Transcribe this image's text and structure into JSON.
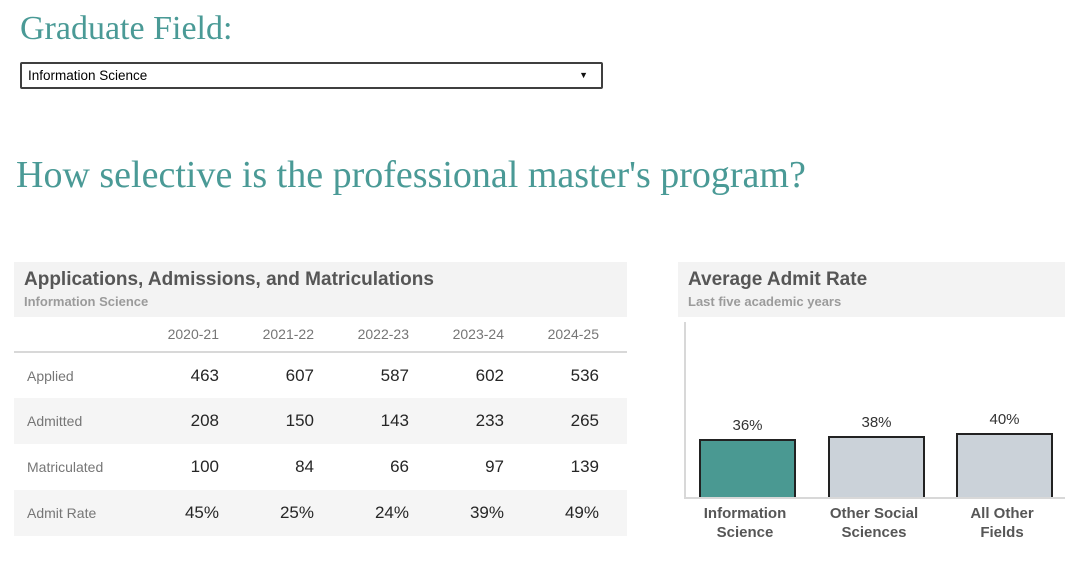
{
  "accent_color": "#4a9a96",
  "filter": {
    "label": "Graduate Field:",
    "selected_value": "Information Science"
  },
  "page_heading": "How selective is the professional master's program?",
  "table": {
    "title": "Applications, Admissions, and Matriculations",
    "subtitle": "Information Science",
    "columns": [
      "2020-21",
      "2021-22",
      "2022-23",
      "2023-24",
      "2024-25"
    ],
    "rows": [
      {
        "label": "Applied",
        "values": [
          "463",
          "607",
          "587",
          "602",
          "536"
        ]
      },
      {
        "label": "Admitted",
        "values": [
          "208",
          "150",
          "143",
          "233",
          "265"
        ]
      },
      {
        "label": "Matriculated",
        "values": [
          "100",
          "84",
          "66",
          "97",
          "139"
        ]
      },
      {
        "label": "Admit Rate",
        "values": [
          "45%",
          "25%",
          "24%",
          "39%",
          "49%"
        ]
      }
    ]
  },
  "chart_data": {
    "type": "bar",
    "title": "Average Admit Rate",
    "subtitle": "Last five academic years",
    "categories": [
      "Information Science",
      "Other Social Sciences",
      "All Other Fields"
    ],
    "values": [
      36,
      38,
      40
    ],
    "value_labels": [
      "36%",
      "38%",
      "40%"
    ],
    "xlabel": "",
    "ylabel": "",
    "ylim": [
      0,
      110
    ],
    "grid": false,
    "legend": false,
    "highlight_index": 0,
    "highlight_color": "#4a9992",
    "bar_color": "#cbd2d9",
    "bar_border_color": "#222222",
    "axis_color": "#d8d8d8"
  }
}
